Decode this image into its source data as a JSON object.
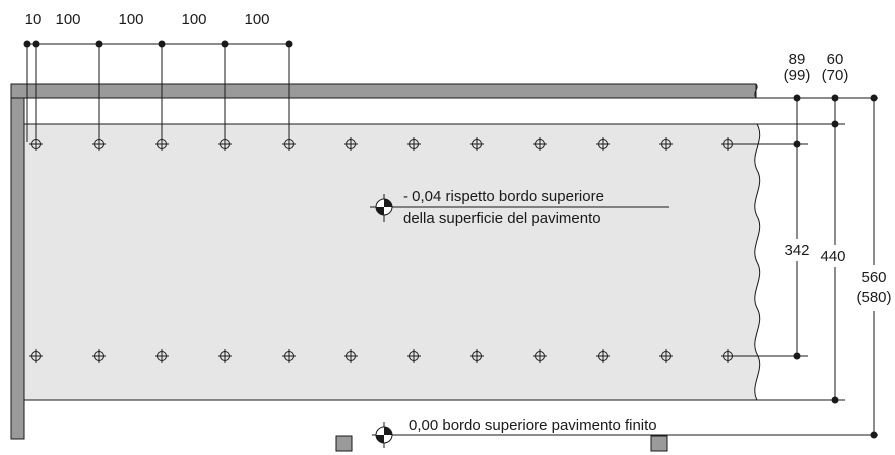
{
  "top_spacing_labels": [
    "10",
    "100",
    "100",
    "100",
    "100"
  ],
  "side_dims": {
    "dim_89": "89",
    "dim_89_alt": "(99)",
    "dim_60": "60",
    "dim_60_alt": "(70)",
    "dim_342": "342",
    "dim_440": "440",
    "dim_560": "560",
    "dim_560_alt": "(580)"
  },
  "notes": {
    "upper_line1": "- 0,04 rispetto bordo superiore",
    "upper_line2": "della superficie del pavimento",
    "lower": "0,00  bordo superiore pavimento finito"
  },
  "colors": {
    "panel_fill": "#e6e6e6",
    "wall_fill": "#9a9a9a",
    "line": "#1a1a1a"
  }
}
